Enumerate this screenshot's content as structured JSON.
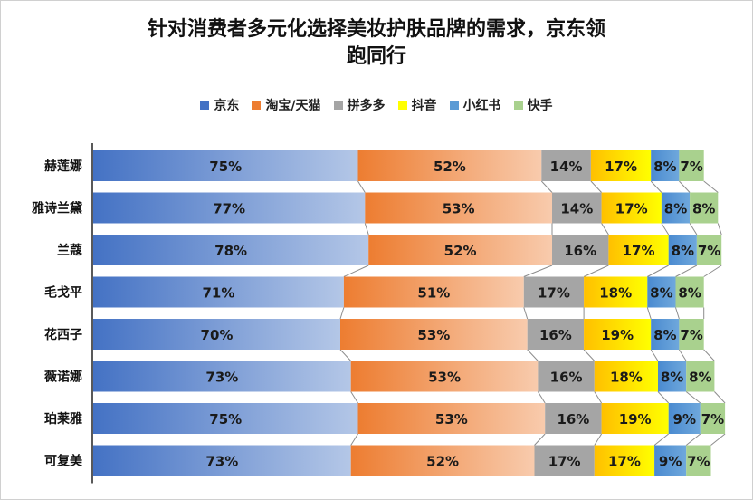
{
  "title_lines": [
    "针对消费者多元化选择美妆护肤品牌的需求，京东领",
    "跑同行"
  ],
  "legend": [
    {
      "name": "京东",
      "color": "#4472c4"
    },
    {
      "name": "淘宝/天猫",
      "color": "#ed7d31"
    },
    {
      "name": "拼多多",
      "color": "#a5a5a5"
    },
    {
      "name": "抖音",
      "color": "#ffff00"
    },
    {
      "name": "小红书",
      "color": "#5b9bd5"
    },
    {
      "name": "快手",
      "color": "#a9d18e"
    }
  ],
  "chart_data": {
    "type": "bar",
    "orientation": "horizontal",
    "stacked": true,
    "title": "针对消费者多元化选择美妆护肤品牌的需求，京东领跑同行",
    "categories": [
      "赫莲娜",
      "雅诗兰黛",
      "兰蔻",
      "毛戈平",
      "花西子",
      "薇诺娜",
      "珀莱雅",
      "可复美"
    ],
    "series": [
      {
        "name": "京东",
        "values": [
          75,
          77,
          78,
          71,
          70,
          73,
          75,
          73
        ],
        "labels": [
          "75%",
          "77%",
          "78%",
          "71%",
          "70%",
          "73%",
          "75%",
          "73%"
        ]
      },
      {
        "name": "淘宝/天猫",
        "values": [
          52,
          53,
          52,
          51,
          53,
          53,
          53,
          52
        ],
        "labels": [
          "52%",
          "53%",
          "52%",
          "51%",
          "53%",
          "53%",
          "53%",
          "52%"
        ]
      },
      {
        "name": "拼多多",
        "values": [
          14,
          14,
          16,
          17,
          16,
          16,
          16,
          17
        ],
        "labels": [
          "14%",
          "14%",
          "16%",
          "17%",
          "16%",
          "16%",
          "16%",
          "17%"
        ]
      },
      {
        "name": "抖音",
        "values": [
          17,
          17,
          17,
          18,
          19,
          18,
          19,
          17
        ],
        "labels": [
          "17%",
          "17%",
          "17%",
          "18%",
          "19%",
          "18%",
          "19%",
          "17%"
        ]
      },
      {
        "name": "小红书",
        "values": [
          8,
          8,
          8,
          8,
          8,
          8,
          9,
          9
        ],
        "labels": [
          "8%",
          "8%",
          "8%",
          "8%",
          "8%",
          "8%",
          "9%",
          "9%"
        ]
      },
      {
        "name": "快手",
        "values": [
          7,
          8,
          7,
          8,
          7,
          8,
          7,
          7
        ],
        "labels": [
          "7%",
          "8%",
          "7%",
          "8%",
          "7%",
          "8%",
          "7%",
          "7%"
        ]
      }
    ],
    "series_lines": true,
    "legend_position": "top",
    "grid": false
  }
}
